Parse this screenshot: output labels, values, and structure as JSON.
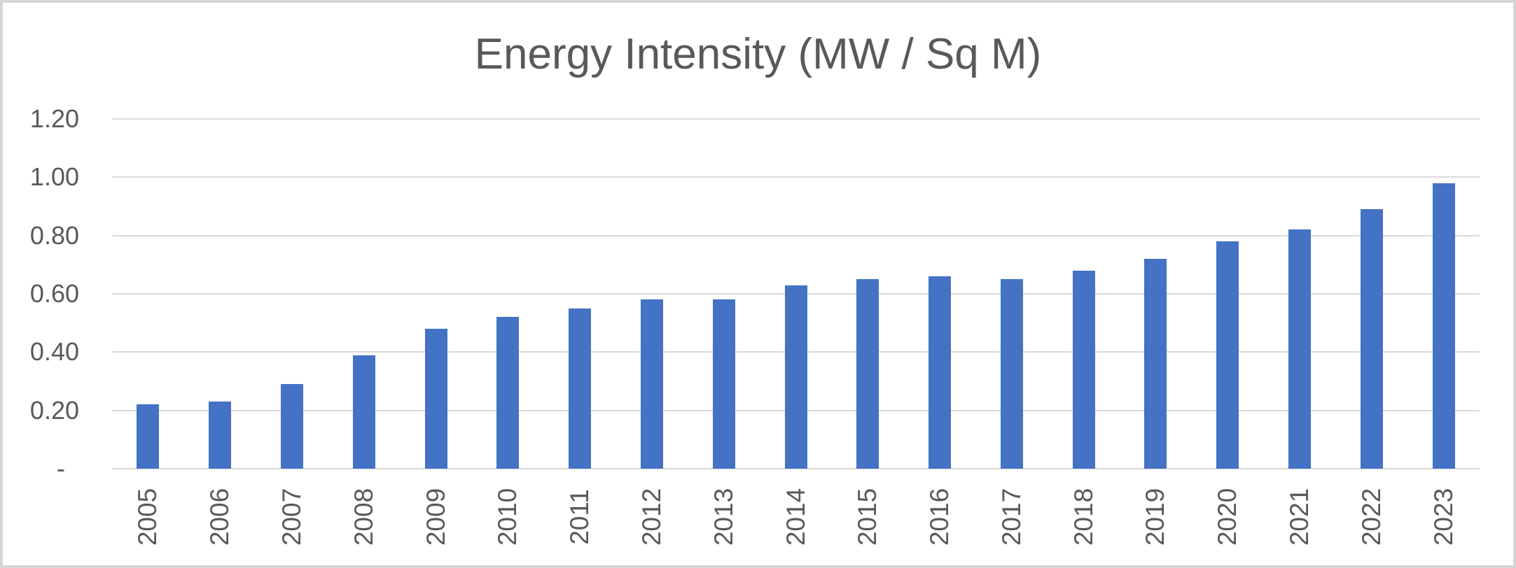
{
  "title": "Energy Intensity (MW / Sq M)",
  "chart_data": {
    "type": "bar",
    "title": "Energy Intensity (MW / Sq M)",
    "categories": [
      "2005",
      "2006",
      "2007",
      "2008",
      "2009",
      "2010",
      "2011",
      "2012",
      "2013",
      "2014",
      "2015",
      "2016",
      "2017",
      "2018",
      "2019",
      "2020",
      "2021",
      "2022",
      "2023"
    ],
    "values": [
      0.22,
      0.23,
      0.29,
      0.39,
      0.48,
      0.52,
      0.55,
      0.58,
      0.58,
      0.63,
      0.65,
      0.66,
      0.65,
      0.68,
      0.72,
      0.78,
      0.82,
      0.89,
      0.98
    ],
    "xlabel": "",
    "ylabel": "",
    "ylim": [
      0,
      1.2
    ],
    "ytick_interval": 0.2,
    "ytick_labels": [
      "-",
      "0.20",
      "0.40",
      "0.60",
      "0.80",
      "1.00",
      "1.20"
    ],
    "grid": true,
    "legend_position": "none",
    "bar_color": "#4472C4",
    "gridline_color": "#D9D9D9",
    "text_color": "#595959",
    "border_color": "#D6D6D6"
  }
}
